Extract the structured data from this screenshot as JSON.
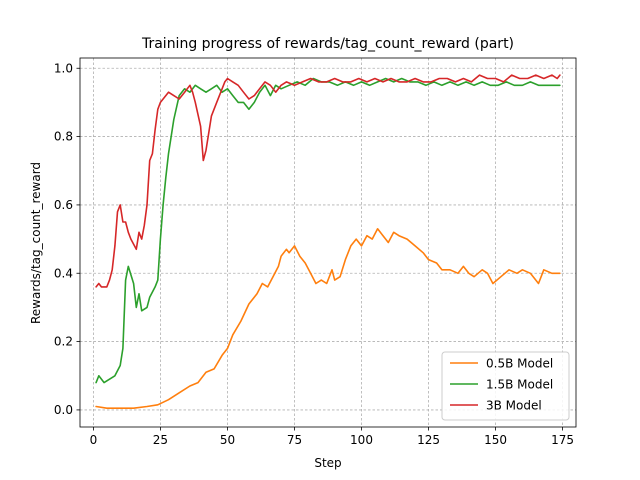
{
  "chart_data": {
    "type": "line",
    "title": "Training progress of rewards/tag_count_reward (part)",
    "xlabel": "Step",
    "ylabel": "Rewards/tag_count_reward",
    "xlim": [
      -5,
      180
    ],
    "ylim": [
      -0.05,
      1.03
    ],
    "xticks": [
      0,
      25,
      50,
      75,
      100,
      125,
      150,
      175
    ],
    "yticks": [
      0.0,
      0.2,
      0.4,
      0.6,
      0.8,
      1.0
    ],
    "xtick_labels": [
      "0",
      "25",
      "50",
      "75",
      "100",
      "125",
      "150",
      "175"
    ],
    "ytick_labels": [
      "0.0",
      "0.2",
      "0.4",
      "0.6",
      "0.8",
      "1.0"
    ],
    "grid": true,
    "legend_position": "lower-right",
    "series": [
      {
        "name": "0.5B Model",
        "color": "#ff7f0e",
        "points": [
          [
            1,
            0.01
          ],
          [
            5,
            0.005
          ],
          [
            10,
            0.005
          ],
          [
            15,
            0.005
          ],
          [
            20,
            0.01
          ],
          [
            24,
            0.015
          ],
          [
            28,
            0.03
          ],
          [
            32,
            0.05
          ],
          [
            36,
            0.07
          ],
          [
            39,
            0.08
          ],
          [
            42,
            0.11
          ],
          [
            45,
            0.12
          ],
          [
            48,
            0.16
          ],
          [
            50,
            0.18
          ],
          [
            52,
            0.22
          ],
          [
            55,
            0.26
          ],
          [
            58,
            0.31
          ],
          [
            61,
            0.34
          ],
          [
            63,
            0.37
          ],
          [
            65,
            0.36
          ],
          [
            67,
            0.39
          ],
          [
            69,
            0.42
          ],
          [
            70,
            0.45
          ],
          [
            72,
            0.47
          ],
          [
            73,
            0.46
          ],
          [
            75,
            0.48
          ],
          [
            77,
            0.45
          ],
          [
            79,
            0.43
          ],
          [
            81,
            0.4
          ],
          [
            83,
            0.37
          ],
          [
            85,
            0.38
          ],
          [
            87,
            0.37
          ],
          [
            89,
            0.41
          ],
          [
            90,
            0.38
          ],
          [
            92,
            0.39
          ],
          [
            94,
            0.44
          ],
          [
            96,
            0.48
          ],
          [
            98,
            0.5
          ],
          [
            100,
            0.48
          ],
          [
            102,
            0.51
          ],
          [
            104,
            0.5
          ],
          [
            106,
            0.53
          ],
          [
            108,
            0.51
          ],
          [
            110,
            0.49
          ],
          [
            112,
            0.52
          ],
          [
            114,
            0.51
          ],
          [
            117,
            0.5
          ],
          [
            120,
            0.48
          ],
          [
            123,
            0.46
          ],
          [
            125,
            0.44
          ],
          [
            128,
            0.43
          ],
          [
            130,
            0.41
          ],
          [
            133,
            0.41
          ],
          [
            136,
            0.4
          ],
          [
            138,
            0.42
          ],
          [
            140,
            0.4
          ],
          [
            142,
            0.39
          ],
          [
            145,
            0.41
          ],
          [
            147,
            0.4
          ],
          [
            149,
            0.37
          ],
          [
            152,
            0.39
          ],
          [
            155,
            0.41
          ],
          [
            158,
            0.4
          ],
          [
            160,
            0.41
          ],
          [
            163,
            0.4
          ],
          [
            166,
            0.37
          ],
          [
            168,
            0.41
          ],
          [
            171,
            0.4
          ],
          [
            174,
            0.4
          ]
        ]
      },
      {
        "name": "1.5B Model",
        "color": "#2ca02c",
        "points": [
          [
            1,
            0.08
          ],
          [
            2,
            0.1
          ],
          [
            4,
            0.08
          ],
          [
            6,
            0.09
          ],
          [
            8,
            0.1
          ],
          [
            10,
            0.13
          ],
          [
            11,
            0.18
          ],
          [
            12,
            0.38
          ],
          [
            13,
            0.42
          ],
          [
            15,
            0.37
          ],
          [
            16,
            0.3
          ],
          [
            17,
            0.34
          ],
          [
            18,
            0.29
          ],
          [
            20,
            0.3
          ],
          [
            21,
            0.33
          ],
          [
            23,
            0.36
          ],
          [
            24,
            0.38
          ],
          [
            25,
            0.5
          ],
          [
            26,
            0.6
          ],
          [
            27,
            0.68
          ],
          [
            28,
            0.75
          ],
          [
            30,
            0.85
          ],
          [
            32,
            0.92
          ],
          [
            34,
            0.94
          ],
          [
            36,
            0.93
          ],
          [
            38,
            0.95
          ],
          [
            40,
            0.94
          ],
          [
            42,
            0.93
          ],
          [
            44,
            0.94
          ],
          [
            46,
            0.95
          ],
          [
            48,
            0.93
          ],
          [
            50,
            0.94
          ],
          [
            52,
            0.92
          ],
          [
            54,
            0.9
          ],
          [
            56,
            0.9
          ],
          [
            58,
            0.88
          ],
          [
            60,
            0.9
          ],
          [
            62,
            0.93
          ],
          [
            64,
            0.95
          ],
          [
            66,
            0.92
          ],
          [
            68,
            0.95
          ],
          [
            70,
            0.94
          ],
          [
            73,
            0.95
          ],
          [
            76,
            0.96
          ],
          [
            79,
            0.95
          ],
          [
            82,
            0.97
          ],
          [
            85,
            0.96
          ],
          [
            88,
            0.96
          ],
          [
            91,
            0.95
          ],
          [
            94,
            0.96
          ],
          [
            97,
            0.95
          ],
          [
            100,
            0.96
          ],
          [
            103,
            0.95
          ],
          [
            106,
            0.96
          ],
          [
            109,
            0.97
          ],
          [
            112,
            0.96
          ],
          [
            115,
            0.97
          ],
          [
            118,
            0.96
          ],
          [
            121,
            0.96
          ],
          [
            124,
            0.95
          ],
          [
            127,
            0.96
          ],
          [
            130,
            0.95
          ],
          [
            133,
            0.96
          ],
          [
            136,
            0.95
          ],
          [
            139,
            0.96
          ],
          [
            142,
            0.95
          ],
          [
            145,
            0.96
          ],
          [
            148,
            0.95
          ],
          [
            151,
            0.95
          ],
          [
            154,
            0.96
          ],
          [
            157,
            0.95
          ],
          [
            160,
            0.95
          ],
          [
            163,
            0.96
          ],
          [
            166,
            0.95
          ],
          [
            169,
            0.95
          ],
          [
            172,
            0.95
          ],
          [
            174,
            0.95
          ]
        ]
      },
      {
        "name": "3B Model",
        "color": "#d62728",
        "points": [
          [
            1,
            0.36
          ],
          [
            2,
            0.37
          ],
          [
            3,
            0.36
          ],
          [
            5,
            0.36
          ],
          [
            6,
            0.38
          ],
          [
            7,
            0.41
          ],
          [
            8,
            0.48
          ],
          [
            9,
            0.58
          ],
          [
            10,
            0.6
          ],
          [
            11,
            0.55
          ],
          [
            12,
            0.55
          ],
          [
            13,
            0.52
          ],
          [
            14,
            0.5
          ],
          [
            16,
            0.47
          ],
          [
            17,
            0.52
          ],
          [
            18,
            0.5
          ],
          [
            19,
            0.54
          ],
          [
            20,
            0.6
          ],
          [
            21,
            0.73
          ],
          [
            22,
            0.75
          ],
          [
            23,
            0.82
          ],
          [
            24,
            0.88
          ],
          [
            25,
            0.9
          ],
          [
            27,
            0.92
          ],
          [
            28,
            0.93
          ],
          [
            30,
            0.92
          ],
          [
            32,
            0.91
          ],
          [
            34,
            0.93
          ],
          [
            36,
            0.95
          ],
          [
            37,
            0.93
          ],
          [
            38,
            0.9
          ],
          [
            40,
            0.83
          ],
          [
            41,
            0.73
          ],
          [
            42,
            0.76
          ],
          [
            44,
            0.86
          ],
          [
            46,
            0.9
          ],
          [
            48,
            0.94
          ],
          [
            49,
            0.96
          ],
          [
            50,
            0.97
          ],
          [
            52,
            0.96
          ],
          [
            54,
            0.95
          ],
          [
            56,
            0.93
          ],
          [
            58,
            0.91
          ],
          [
            60,
            0.92
          ],
          [
            62,
            0.94
          ],
          [
            64,
            0.96
          ],
          [
            66,
            0.95
          ],
          [
            68,
            0.93
          ],
          [
            70,
            0.95
          ],
          [
            72,
            0.96
          ],
          [
            75,
            0.95
          ],
          [
            78,
            0.96
          ],
          [
            81,
            0.97
          ],
          [
            84,
            0.96
          ],
          [
            87,
            0.96
          ],
          [
            90,
            0.97
          ],
          [
            93,
            0.96
          ],
          [
            96,
            0.96
          ],
          [
            99,
            0.97
          ],
          [
            102,
            0.96
          ],
          [
            105,
            0.97
          ],
          [
            108,
            0.96
          ],
          [
            111,
            0.97
          ],
          [
            114,
            0.96
          ],
          [
            117,
            0.96
          ],
          [
            120,
            0.97
          ],
          [
            123,
            0.96
          ],
          [
            126,
            0.96
          ],
          [
            129,
            0.97
          ],
          [
            132,
            0.97
          ],
          [
            135,
            0.96
          ],
          [
            138,
            0.97
          ],
          [
            141,
            0.96
          ],
          [
            144,
            0.98
          ],
          [
            147,
            0.97
          ],
          [
            150,
            0.97
          ],
          [
            153,
            0.96
          ],
          [
            156,
            0.98
          ],
          [
            159,
            0.97
          ],
          [
            162,
            0.97
          ],
          [
            165,
            0.98
          ],
          [
            168,
            0.97
          ],
          [
            171,
            0.98
          ],
          [
            173,
            0.97
          ],
          [
            174,
            0.98
          ]
        ]
      }
    ]
  }
}
